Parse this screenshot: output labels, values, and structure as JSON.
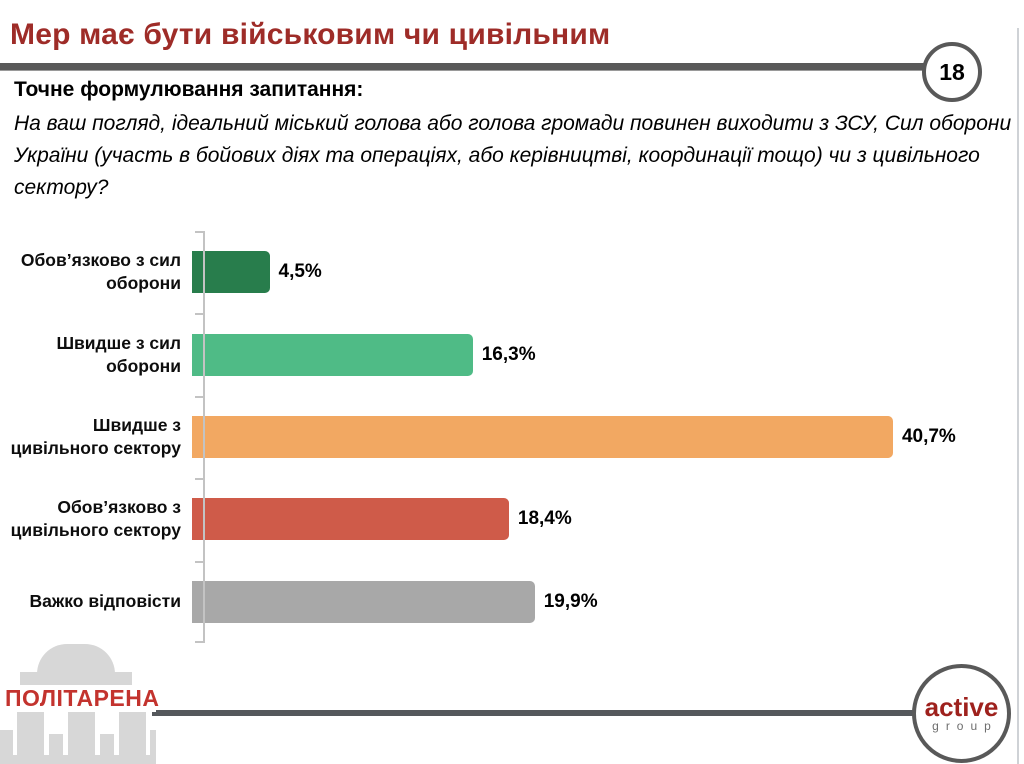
{
  "slide": {
    "title": "Мер має бути військовим чи цивільним",
    "page_number": "18",
    "question_heading": "Точне формулювання запитання:",
    "question_text": "На ваш погляд, ідеальний міський голова або голова громади повинен виходити з ЗСУ, Сил оборони України (участь в бойових діях та операціях, або керівництві, координації тощо) чи з цивільного сектору?"
  },
  "chart_data": {
    "type": "bar",
    "orientation": "horizontal",
    "title": "",
    "xlabel": "",
    "ylabel": "",
    "xlim": [
      0,
      45
    ],
    "grid": false,
    "legend": false,
    "data_labels": true,
    "categories": [
      "Обов’язково з сил оборони",
      "Швидше з сил оборони",
      "Швидше з цивільного сектору",
      "Обов’язково з цивільного сектору",
      "Важко відповісти"
    ],
    "label_lines": [
      [
        "Обов’язково з сил",
        "оборони"
      ],
      [
        "Швидше з сил",
        "оборони"
      ],
      [
        "Швидше з",
        "цивільного сектору"
      ],
      [
        "Обов’язково з",
        "цивільного сектору"
      ],
      [
        "Важко відповісти"
      ]
    ],
    "values": [
      4.5,
      16.3,
      40.7,
      18.4,
      19.9
    ],
    "value_labels": [
      "4,5%",
      "16,3%",
      "40,7%",
      "18,4%",
      "19,9%"
    ],
    "bar_colors": [
      "#287d4c",
      "#4fbb86",
      "#f2a862",
      "#cf5b49",
      "#a8a8a8"
    ],
    "axis_color": "#c3c3c3"
  },
  "footer": {
    "left_logo_text": "ПОЛІТАРЕНА",
    "right_logo_line1": "active",
    "right_logo_line2": "group"
  },
  "colors": {
    "title_red": "#9e2c28",
    "rule_gray": "#595959",
    "logo_red": "#c3332e",
    "building_gray": "#d7d7d7"
  }
}
